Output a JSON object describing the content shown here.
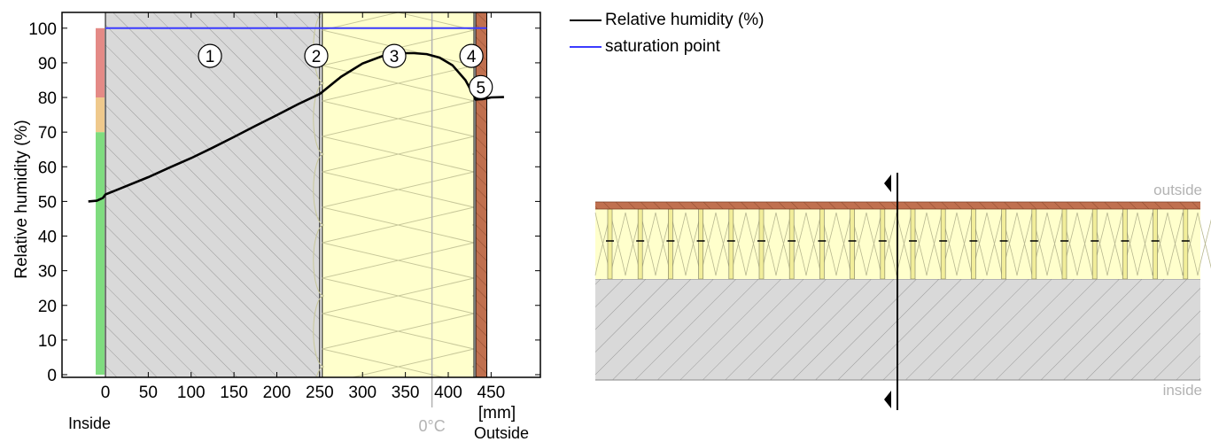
{
  "chart_data": {
    "type": "line",
    "ylabel": "Relative humidity (%)",
    "xunit": "[mm]",
    "inside_label": "Inside",
    "outside_label": "Outside",
    "zero_c_label": "0°C",
    "zero_c_x": 381,
    "xlim": [
      -30,
      470
    ],
    "ylim": [
      0,
      105
    ],
    "xticks": [
      0,
      50,
      100,
      150,
      200,
      250,
      300,
      350,
      400,
      450
    ],
    "yticks": [
      0,
      10,
      20,
      30,
      40,
      50,
      60,
      70,
      80,
      90,
      100
    ],
    "layers": [
      {
        "number": "1",
        "from": 0,
        "to": 250,
        "material": "concrete",
        "fill": "#d9d9d9"
      },
      {
        "number": "2",
        "from": 250,
        "to": 253,
        "material": "adhesive",
        "fill": "#ffffff"
      },
      {
        "number": "3",
        "from": 253,
        "to": 430,
        "material": "insulation",
        "fill": "#ffffcc"
      },
      {
        "number": "4",
        "from": 430,
        "to": 432,
        "material": "membrane",
        "fill": "#ffffff"
      },
      {
        "number": "5",
        "from": 432,
        "to": 445,
        "material": "render",
        "fill": "#c0704f"
      }
    ],
    "layer_labels": [
      {
        "number": "1",
        "x": 122,
        "y": 92
      },
      {
        "number": "2",
        "x": 246,
        "y": 92
      },
      {
        "number": "3",
        "x": 337,
        "y": 92
      },
      {
        "number": "4",
        "x": 427,
        "y": 92
      },
      {
        "number": "5",
        "x": 438,
        "y": 83
      }
    ],
    "humidity_bands": [
      {
        "from": 0,
        "to": 70,
        "color": "#7fdc7f"
      },
      {
        "from": 70,
        "to": 80,
        "color": "#efc98c"
      },
      {
        "from": 80,
        "to": 100,
        "color": "#e48a86"
      }
    ],
    "series": [
      {
        "name": "Relative humidity (%)",
        "color": "#000000",
        "x": [
          -20,
          -10,
          -3,
          0,
          25,
          50,
          75,
          100,
          125,
          150,
          175,
          200,
          225,
          250,
          253,
          275,
          300,
          325,
          350,
          360,
          375,
          390,
          405,
          420,
          430,
          432,
          440,
          450,
          465
        ],
        "y": [
          50,
          50.2,
          51,
          52,
          54.5,
          57,
          59.8,
          62.5,
          65.5,
          68.6,
          71.8,
          74.9,
          78.1,
          81,
          81.6,
          86,
          89.8,
          92.1,
          92.8,
          92.8,
          92.5,
          91.5,
          89.3,
          85,
          80.5,
          79.4,
          79.5,
          80,
          80.1
        ]
      },
      {
        "name": "saturation point",
        "color": "#3b3bff",
        "x": [
          0,
          445
        ],
        "y": [
          100,
          100
        ]
      }
    ]
  },
  "legend": [
    {
      "label": "Relative humidity (%)",
      "color": "#000000"
    },
    {
      "label": "saturation point",
      "color": "#3b3bff"
    }
  ],
  "section_view": {
    "outside_label": "outside",
    "inside_label": "inside"
  }
}
